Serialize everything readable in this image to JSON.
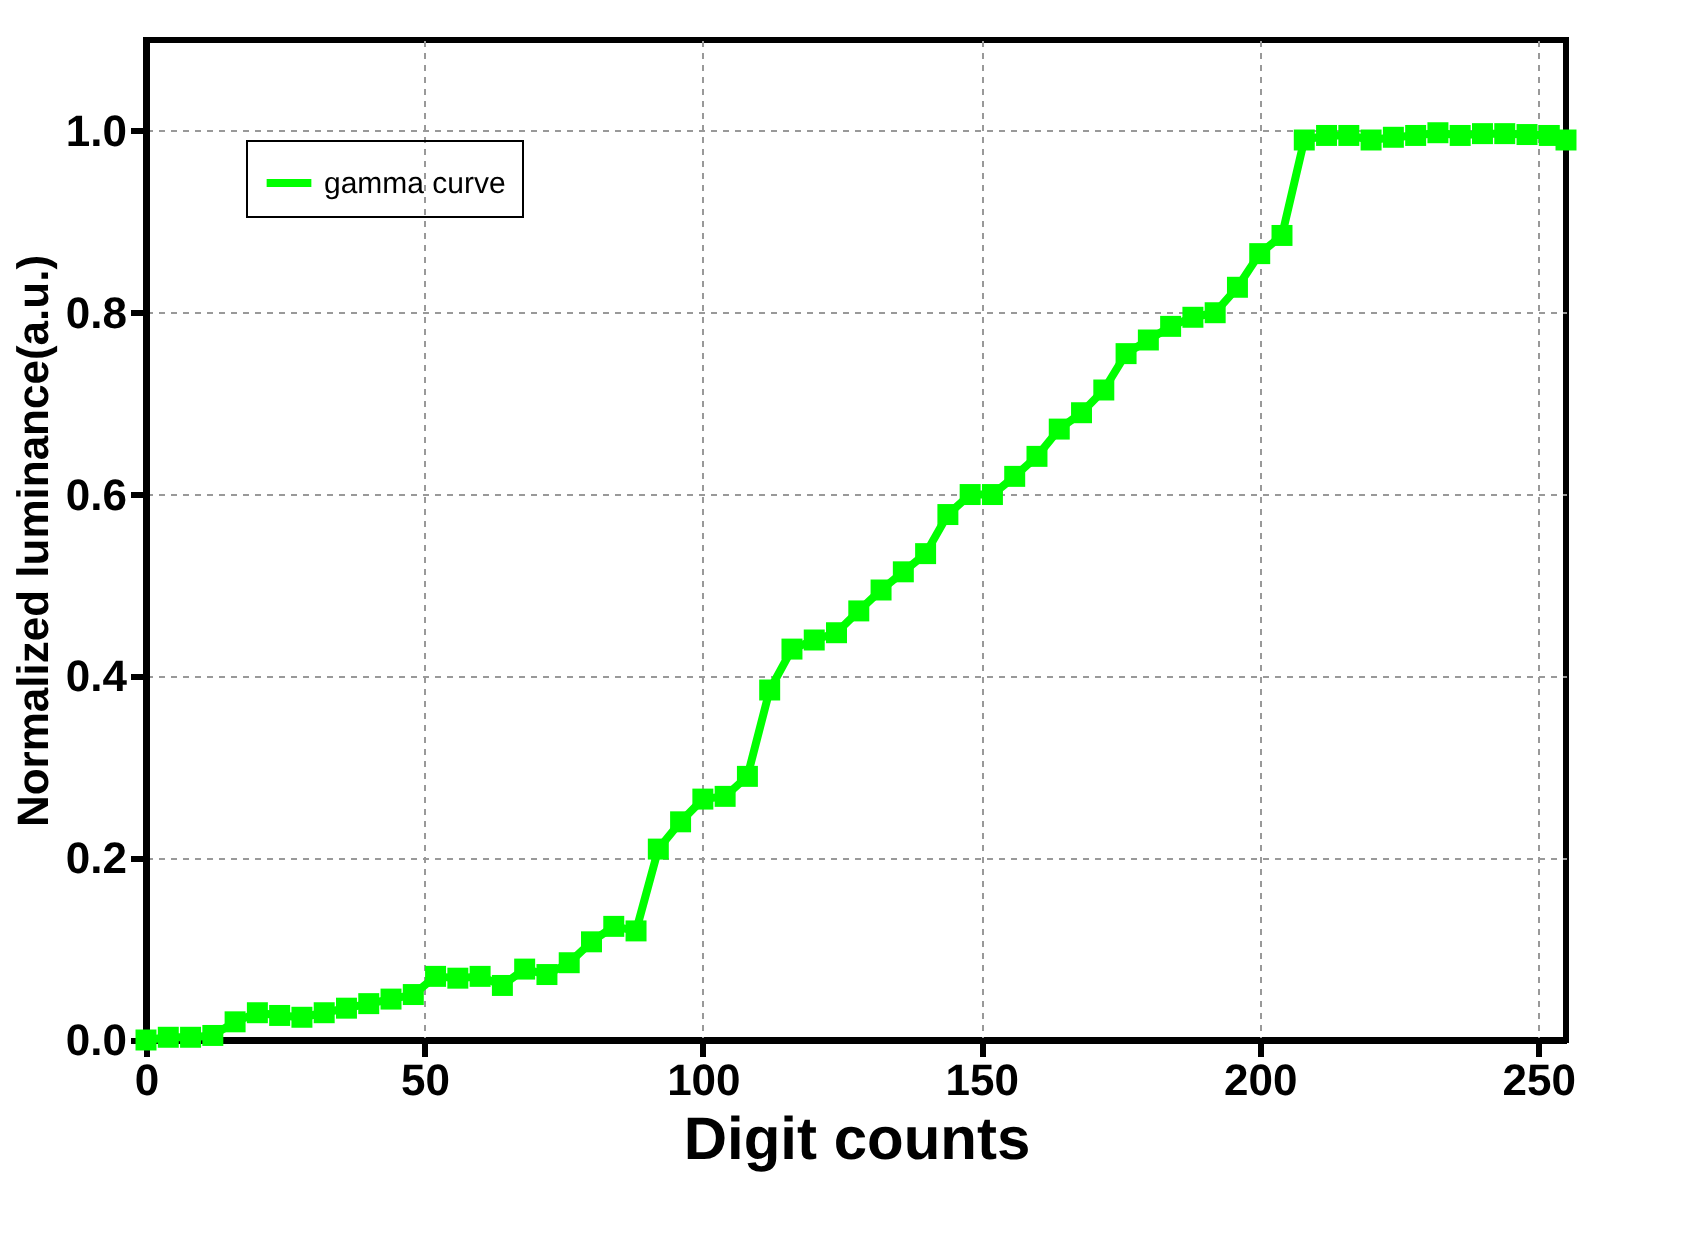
{
  "chart_data": {
    "type": "line",
    "xlabel": "Digit counts",
    "ylabel": "Normalized luminance(a.u.)",
    "x": [
      0,
      4,
      8,
      12,
      16,
      20,
      24,
      28,
      32,
      36,
      40,
      44,
      48,
      52,
      56,
      60,
      64,
      68,
      72,
      76,
      80,
      84,
      88,
      92,
      96,
      100,
      104,
      108,
      112,
      116,
      120,
      124,
      128,
      132,
      136,
      140,
      144,
      148,
      152,
      156,
      160,
      164,
      168,
      172,
      176,
      180,
      184,
      188,
      192,
      196,
      200,
      204,
      208,
      212,
      216,
      220,
      224,
      228,
      232,
      236,
      240,
      244,
      248,
      252,
      255
    ],
    "series": [
      {
        "name": "gamma curve",
        "color": "#00ff00",
        "values": [
          0.0,
          0.003,
          0.003,
          0.005,
          0.02,
          0.03,
          0.027,
          0.025,
          0.03,
          0.035,
          0.04,
          0.045,
          0.05,
          0.07,
          0.068,
          0.07,
          0.06,
          0.078,
          0.072,
          0.085,
          0.108,
          0.125,
          0.12,
          0.21,
          0.24,
          0.265,
          0.268,
          0.29,
          0.385,
          0.43,
          0.44,
          0.448,
          0.472,
          0.495,
          0.515,
          0.535,
          0.578,
          0.6,
          0.6,
          0.62,
          0.642,
          0.672,
          0.69,
          0.715,
          0.755,
          0.77,
          0.785,
          0.795,
          0.8,
          0.828,
          0.865,
          0.885,
          0.99,
          0.995,
          0.995,
          0.99,
          0.993,
          0.995,
          0.998,
          0.995,
          0.997,
          0.997,
          0.996,
          0.995,
          0.99
        ]
      }
    ],
    "xlim": [
      0,
      255
    ],
    "xticks": [
      0,
      50,
      100,
      150,
      200,
      250
    ],
    "ylim": [
      0,
      1.1
    ],
    "yticks": [
      {
        "value": 0,
        "label": "0.0"
      },
      {
        "value": 0.2,
        "label": "0.2"
      },
      {
        "value": 0.4,
        "label": "0.4"
      },
      {
        "value": 0.6,
        "label": "0.6"
      },
      {
        "value": 0.8,
        "label": "0.8"
      },
      {
        "value": 1,
        "label": "1.0"
      }
    ],
    "grid": true,
    "legend": "top left",
    "marker": "square",
    "line_style": "solid"
  }
}
